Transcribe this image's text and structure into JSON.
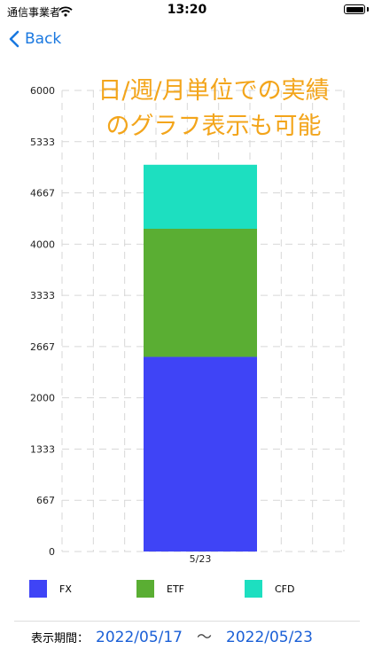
{
  "status_bar": {
    "carrier": "通信事業者",
    "time": "13:20"
  },
  "nav": {
    "back_label": "Back"
  },
  "headline": {
    "line1": "日/週/月単位での実績",
    "line2": "のグラフ表示も可能"
  },
  "chart_data": {
    "type": "bar",
    "stacked": true,
    "categories": [
      "5/23"
    ],
    "series": [
      {
        "name": "FX",
        "color": "#3f44f6",
        "values": [
          2533
        ]
      },
      {
        "name": "ETF",
        "color": "#5aae33",
        "values": [
          1667
        ]
      },
      {
        "name": "CFD",
        "color": "#1ddfc0",
        "values": [
          833
        ]
      }
    ],
    "ylim": [
      0,
      6000
    ],
    "yticks": [
      "0",
      "667",
      "1333",
      "2000",
      "2667",
      "3333",
      "4000",
      "4667",
      "5333",
      "6000"
    ],
    "grid": true,
    "legend_position": "bottom"
  },
  "period": {
    "label": "表示期間：",
    "start": "2022/05/17",
    "separator": "〜",
    "end": "2022/05/23"
  }
}
